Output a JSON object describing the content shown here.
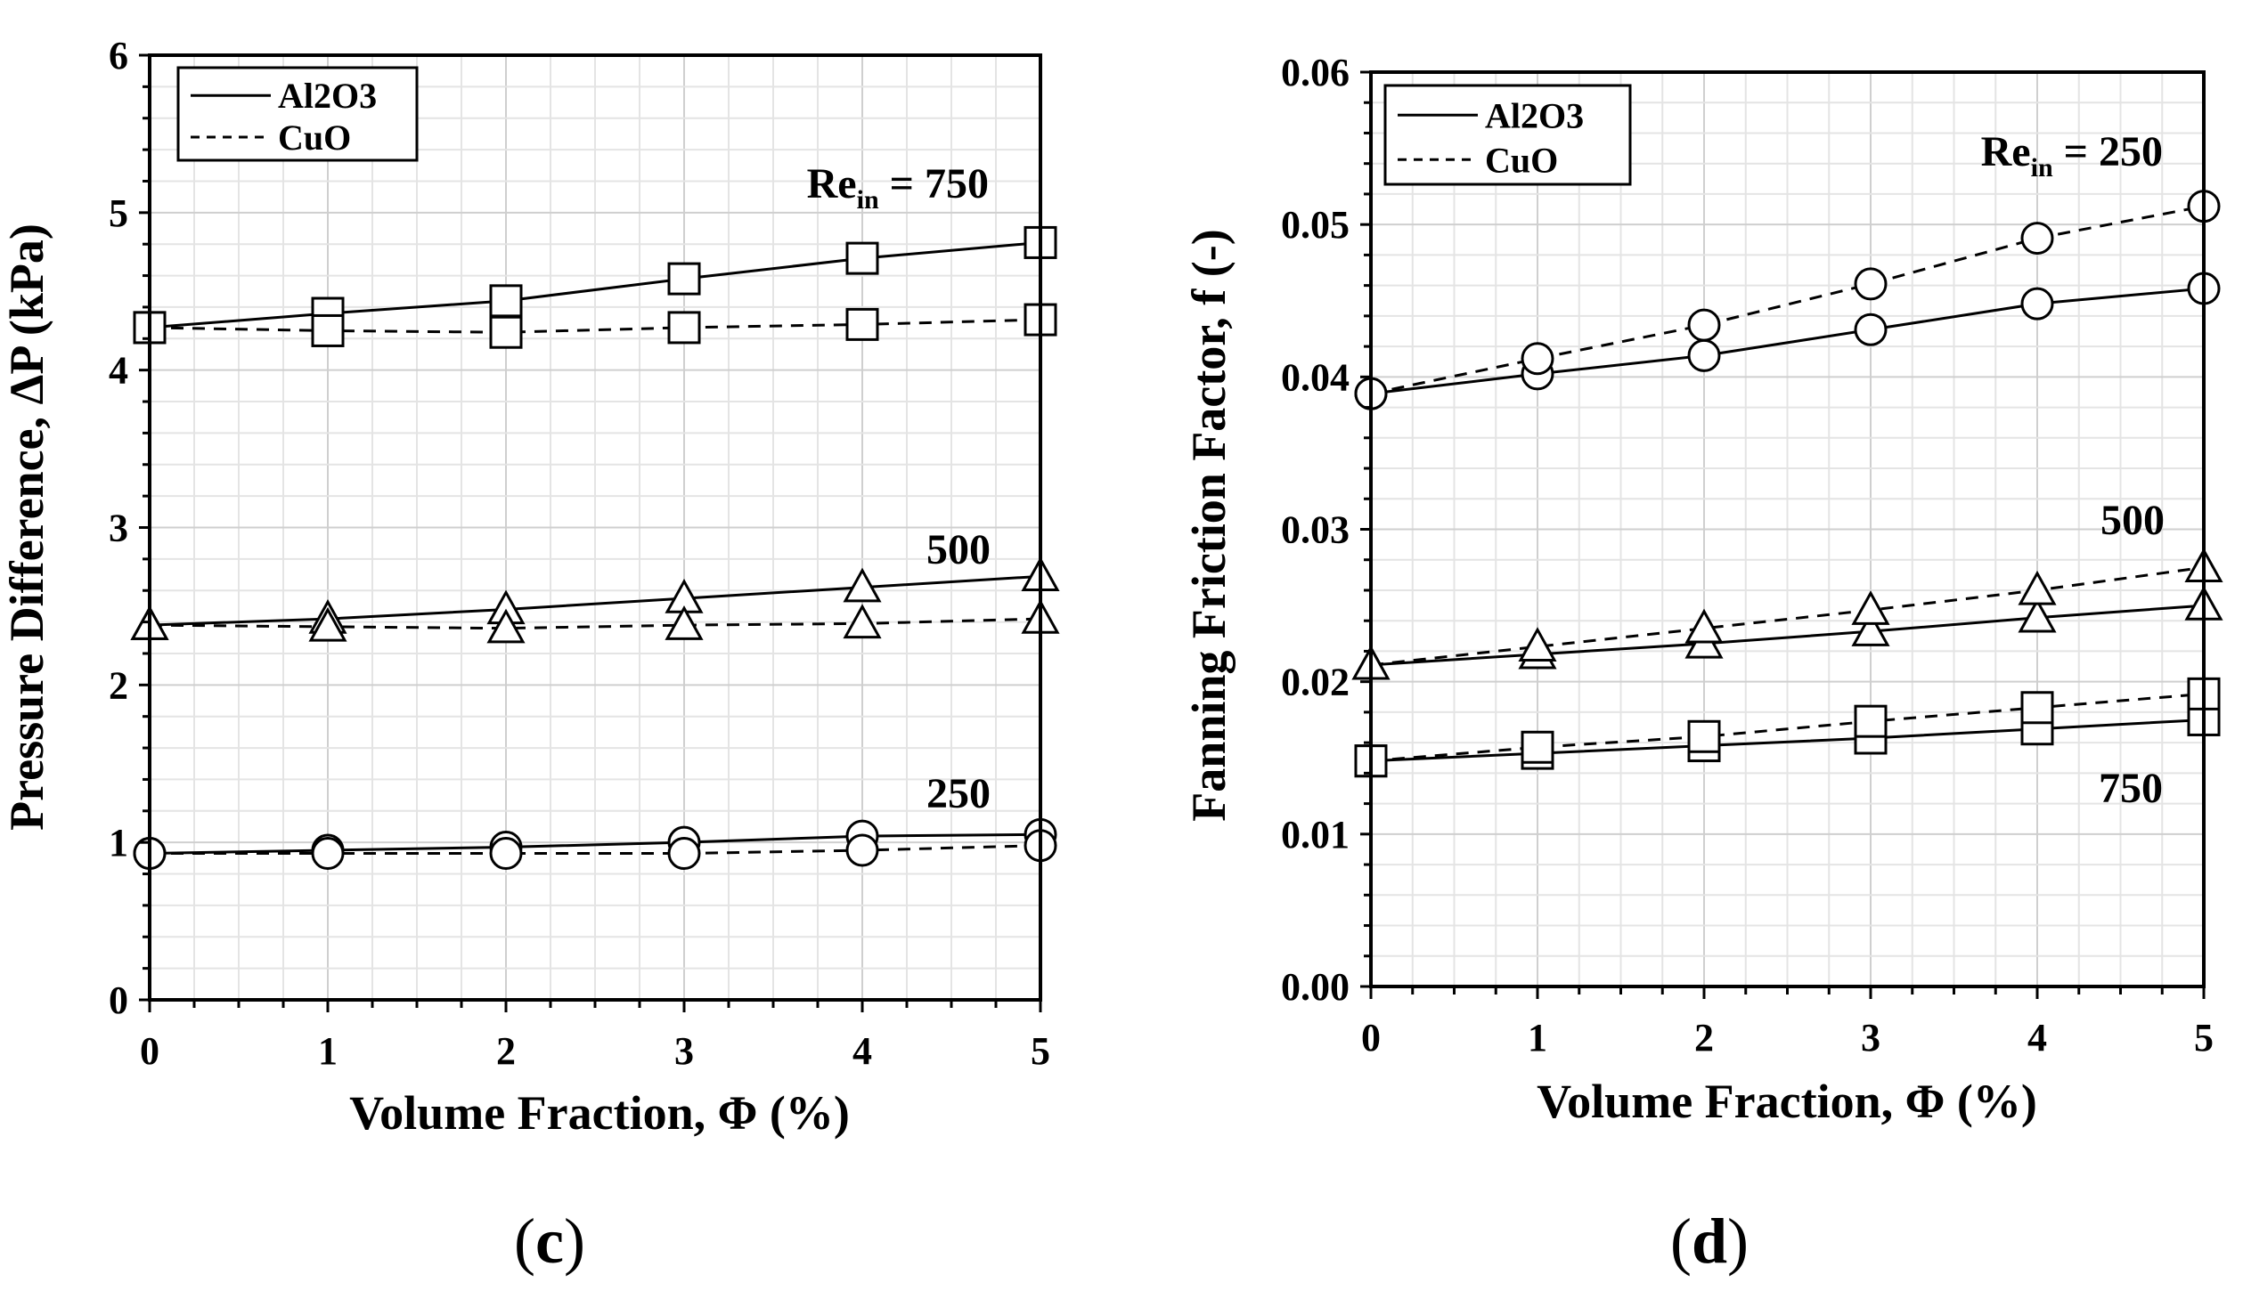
{
  "chart_data": [
    {
      "type": "line",
      "panel_label": "c",
      "xlabel": "Volume Fraction, Φ (%)",
      "ylabel": "Pressure Difference, ΔP (kPa)",
      "xlim": [
        0,
        5
      ],
      "ylim": [
        0,
        6
      ],
      "x_ticks": [
        "0",
        "1",
        "2",
        "3",
        "4",
        "5"
      ],
      "y_ticks": [
        "0",
        "1",
        "2",
        "3",
        "4",
        "5",
        "6"
      ],
      "grid": true,
      "legend": {
        "position": "top-left",
        "entries": [
          {
            "label": "Al2O3",
            "style": "solid"
          },
          {
            "label": "CuO",
            "style": "dashed"
          }
        ]
      },
      "annotations": [
        {
          "text": "Re",
          "sub": "in",
          "suffix": " = 750",
          "at_series": "750"
        },
        {
          "text": "500",
          "at_series": "500"
        },
        {
          "text": "250",
          "at_series": "250"
        }
      ],
      "x": [
        0,
        1,
        2,
        3,
        4,
        5
      ],
      "series": [
        {
          "name": "Al2O3 Re=750",
          "material": "Al2O3",
          "re": "750",
          "marker": "square",
          "style": "solid",
          "values": [
            4.27,
            4.36,
            4.44,
            4.58,
            4.71,
            4.81
          ]
        },
        {
          "name": "CuO Re=750",
          "material": "CuO",
          "re": "750",
          "marker": "square",
          "style": "dashed",
          "values": [
            4.27,
            4.25,
            4.24,
            4.27,
            4.29,
            4.32
          ]
        },
        {
          "name": "Al2O3 Re=500",
          "material": "Al2O3",
          "re": "500",
          "marker": "triangle",
          "style": "solid",
          "values": [
            2.38,
            2.42,
            2.48,
            2.55,
            2.62,
            2.69
          ]
        },
        {
          "name": "CuO Re=500",
          "material": "CuO",
          "re": "500",
          "marker": "triangle",
          "style": "dashed",
          "values": [
            2.38,
            2.37,
            2.36,
            2.38,
            2.39,
            2.42
          ]
        },
        {
          "name": "Al2O3 Re=250",
          "material": "Al2O3",
          "re": "250",
          "marker": "circle",
          "style": "solid",
          "values": [
            0.93,
            0.95,
            0.97,
            1.0,
            1.04,
            1.05
          ]
        },
        {
          "name": "CuO Re=250",
          "material": "CuO",
          "re": "250",
          "marker": "circle",
          "style": "dashed",
          "values": [
            0.93,
            0.93,
            0.93,
            0.93,
            0.95,
            0.98
          ]
        }
      ]
    },
    {
      "type": "line",
      "panel_label": "d",
      "xlabel": "Volume Fraction, Φ (%)",
      "ylabel": "Fanning Friction Factor, f (-)",
      "xlim": [
        0,
        5
      ],
      "ylim": [
        0,
        0.06
      ],
      "x_ticks": [
        "0",
        "1",
        "2",
        "3",
        "4",
        "5"
      ],
      "y_ticks": [
        "0.00",
        "0.01",
        "0.02",
        "0.03",
        "0.04",
        "0.05",
        "0.06"
      ],
      "grid": true,
      "legend": {
        "position": "top-left",
        "entries": [
          {
            "label": "Al2O3",
            "style": "solid"
          },
          {
            "label": "CuO",
            "style": "dashed"
          }
        ]
      },
      "annotations": [
        {
          "text": "Re",
          "sub": "in",
          "suffix": " = 250",
          "at_series": "250"
        },
        {
          "text": "500",
          "at_series": "500"
        },
        {
          "text": "750",
          "at_series": "750"
        }
      ],
      "x": [
        0,
        1,
        2,
        3,
        4,
        5
      ],
      "series": [
        {
          "name": "Al2O3 Re=250",
          "material": "Al2O3",
          "re": "250",
          "marker": "circle",
          "style": "solid",
          "values": [
            0.0389,
            0.0402,
            0.0414,
            0.0431,
            0.0448,
            0.0458
          ]
        },
        {
          "name": "CuO Re=250",
          "material": "CuO",
          "re": "250",
          "marker": "circle",
          "style": "dashed",
          "values": [
            0.0389,
            0.0412,
            0.0434,
            0.0461,
            0.0491,
            0.0512
          ]
        },
        {
          "name": "Al2O3 Re=500",
          "material": "Al2O3",
          "re": "500",
          "marker": "triangle",
          "style": "solid",
          "values": [
            0.0211,
            0.0218,
            0.0225,
            0.0233,
            0.0242,
            0.025
          ]
        },
        {
          "name": "CuO Re=500",
          "material": "CuO",
          "re": "500",
          "marker": "triangle",
          "style": "dashed",
          "values": [
            0.0211,
            0.0223,
            0.0235,
            0.0247,
            0.026,
            0.0275
          ]
        },
        {
          "name": "Al2O3 Re=750",
          "material": "Al2O3",
          "re": "750",
          "marker": "square",
          "style": "solid",
          "values": [
            0.0148,
            0.0153,
            0.0158,
            0.0163,
            0.0169,
            0.0175
          ]
        },
        {
          "name": "CuO Re=750",
          "material": "CuO",
          "re": "750",
          "marker": "square",
          "style": "dashed",
          "values": [
            0.0148,
            0.0157,
            0.0164,
            0.0174,
            0.0183,
            0.0192
          ]
        }
      ]
    }
  ]
}
